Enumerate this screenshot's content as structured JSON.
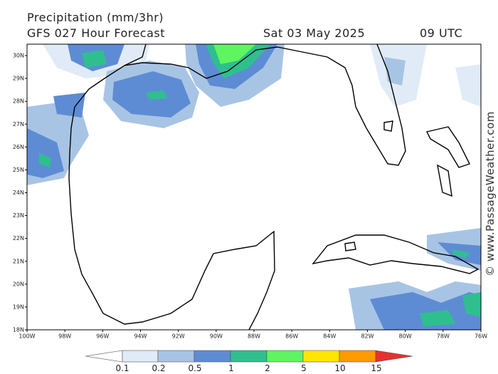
{
  "header": {
    "title": "Precipitation (mm/3hr)",
    "forecast": "GFS 027 Hour Forecast",
    "date": "Sat 03 May 2025",
    "time": "09 UTC"
  },
  "map": {
    "lat_labels": [
      "30N",
      "29N",
      "28N",
      "27N",
      "26N",
      "25N",
      "24N",
      "23N",
      "22N",
      "21N",
      "20N",
      "19N",
      "18N"
    ],
    "lon_labels": [
      "100W",
      "98W",
      "96W",
      "94W",
      "92W",
      "90W",
      "88W",
      "86W",
      "84W",
      "82W",
      "80W",
      "78W",
      "76W"
    ]
  },
  "legend": {
    "labels": [
      "0.1",
      "0.2",
      "0.5",
      "1",
      "2",
      "5",
      "10",
      "15"
    ]
  },
  "credit": "© www.PassageWeather.com"
}
